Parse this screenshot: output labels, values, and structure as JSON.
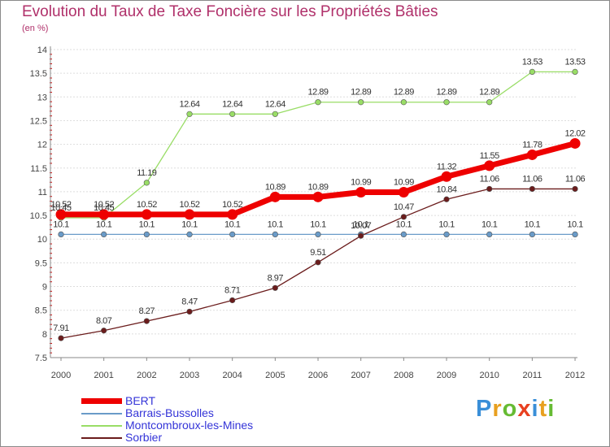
{
  "chart_data": {
    "type": "line",
    "title": "Evolution du Taux de Taxe Foncière sur les Propriétés Bâties",
    "subtitle": "(en %)",
    "x": [
      "2000",
      "2001",
      "2002",
      "2003",
      "2004",
      "2005",
      "2006",
      "2007",
      "2008",
      "2009",
      "2010",
      "2011",
      "2012"
    ],
    "ylim": [
      7.5,
      14
    ],
    "yticks": [
      "7.5",
      "8",
      "8.5",
      "9",
      "9.5",
      "10",
      "10.5",
      "11",
      "11.5",
      "12",
      "12.5",
      "13",
      "13.5",
      "14"
    ],
    "grid": "horizontal",
    "legend_position": "bottom-left",
    "series": [
      {
        "name": "BERT",
        "color": "#ee0000",
        "values": [
          10.52,
          10.52,
          10.52,
          10.52,
          10.52,
          10.89,
          10.89,
          10.99,
          10.99,
          11.32,
          11.55,
          11.78,
          12.02
        ],
        "labels": [
          "10.52",
          "10.52",
          "10.52",
          "10.52",
          "10.52",
          "10.89",
          "10.89",
          "10.99",
          "10.99",
          "11.32",
          "11.55",
          "11.78",
          "12.02"
        ]
      },
      {
        "name": "Barrais-Bussolles",
        "color": "#6a9bc8",
        "values": [
          10.1,
          10.1,
          10.1,
          10.1,
          10.1,
          10.1,
          10.1,
          10.1,
          10.1,
          10.1,
          10.1,
          10.1,
          10.1
        ],
        "labels": [
          "10.1",
          "10.1",
          "10.1",
          "10.1",
          "10.1",
          "10.1",
          "10.1",
          "10.1",
          "10.1",
          "10.1",
          "10.1",
          "10.1",
          "10.1"
        ]
      },
      {
        "name": "Montcombroux-les-Mines",
        "color": "#99dd66",
        "values": [
          10.45,
          10.45,
          11.19,
          12.64,
          12.64,
          12.64,
          12.89,
          12.89,
          12.89,
          12.89,
          12.89,
          13.53,
          13.53
        ],
        "labels": [
          "10.45",
          "10.45",
          "11.19",
          "12.64",
          "12.64",
          "12.64",
          "12.89",
          "12.89",
          "12.89",
          "12.89",
          "12.89",
          "13.53",
          "13.53"
        ]
      },
      {
        "name": "Sorbier",
        "color": "#6b1c1c",
        "values": [
          7.91,
          8.07,
          8.27,
          8.47,
          8.71,
          8.97,
          9.51,
          10.07,
          10.47,
          10.84,
          11.06,
          11.06,
          11.06
        ],
        "labels": [
          "7.91",
          "8.07",
          "8.27",
          "8.47",
          "8.71",
          "8.97",
          "9.51",
          "10.07",
          "10.47",
          "10.84",
          "11.06",
          "11.06",
          "11.06"
        ]
      }
    ]
  },
  "logo": {
    "letters": [
      "P",
      "r",
      "o",
      "x",
      "i",
      "t",
      "i"
    ],
    "colors": [
      "#3a8fd8",
      "#e8a020",
      "#66bb33",
      "#e84020",
      "#3a8fd8",
      "#e8a020",
      "#66bb33"
    ]
  }
}
